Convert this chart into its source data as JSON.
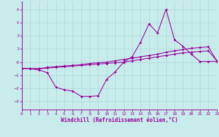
{
  "xlabel": "Windchill (Refroidissement éolien,°C)",
  "background_color": "#c8ecec",
  "grid_color": "#b0d8d8",
  "line_color": "#990099",
  "xlim": [
    0,
    23
  ],
  "ylim": [
    -3.6,
    4.6
  ],
  "yticks": [
    -3,
    -2,
    -1,
    0,
    1,
    2,
    3,
    4
  ],
  "xticks": [
    0,
    1,
    2,
    3,
    4,
    5,
    6,
    7,
    8,
    9,
    10,
    11,
    12,
    13,
    14,
    15,
    16,
    17,
    18,
    19,
    20,
    21,
    22,
    23
  ],
  "trend1_x": [
    0,
    1,
    2,
    3,
    4,
    5,
    6,
    7,
    8,
    9,
    10,
    11,
    12,
    13,
    14,
    15,
    16,
    17,
    18,
    19,
    20,
    21,
    22,
    23
  ],
  "trend1_y": [
    -0.5,
    -0.5,
    -0.5,
    -0.45,
    -0.4,
    -0.35,
    -0.3,
    -0.25,
    -0.2,
    -0.15,
    -0.1,
    -0.05,
    0.0,
    0.1,
    0.2,
    0.3,
    0.4,
    0.5,
    0.6,
    0.7,
    0.75,
    0.8,
    0.85,
    0.1
  ],
  "trend2_x": [
    0,
    1,
    2,
    3,
    4,
    5,
    6,
    7,
    8,
    9,
    10,
    11,
    12,
    13,
    14,
    15,
    16,
    17,
    18,
    19,
    20,
    21,
    22,
    23
  ],
  "trend2_y": [
    -0.5,
    -0.5,
    -0.5,
    -0.4,
    -0.35,
    -0.3,
    -0.25,
    -0.2,
    -0.1,
    -0.05,
    0.0,
    0.1,
    0.2,
    0.3,
    0.4,
    0.5,
    0.6,
    0.75,
    0.85,
    0.95,
    1.05,
    1.1,
    1.15,
    0.1
  ],
  "main_x": [
    0,
    1,
    2,
    3,
    4,
    5,
    6,
    7,
    8,
    9,
    10,
    11,
    12,
    13,
    14,
    15,
    16,
    17,
    18,
    19,
    20,
    21,
    22,
    23
  ],
  "main_y": [
    -0.5,
    -0.5,
    -0.6,
    -0.8,
    -1.9,
    -2.1,
    -2.2,
    -2.6,
    -2.6,
    -2.55,
    -1.3,
    -0.75,
    0.0,
    0.4,
    1.5,
    2.9,
    2.2,
    4.0,
    1.7,
    1.2,
    0.6,
    0.05,
    0.05,
    0.05
  ]
}
